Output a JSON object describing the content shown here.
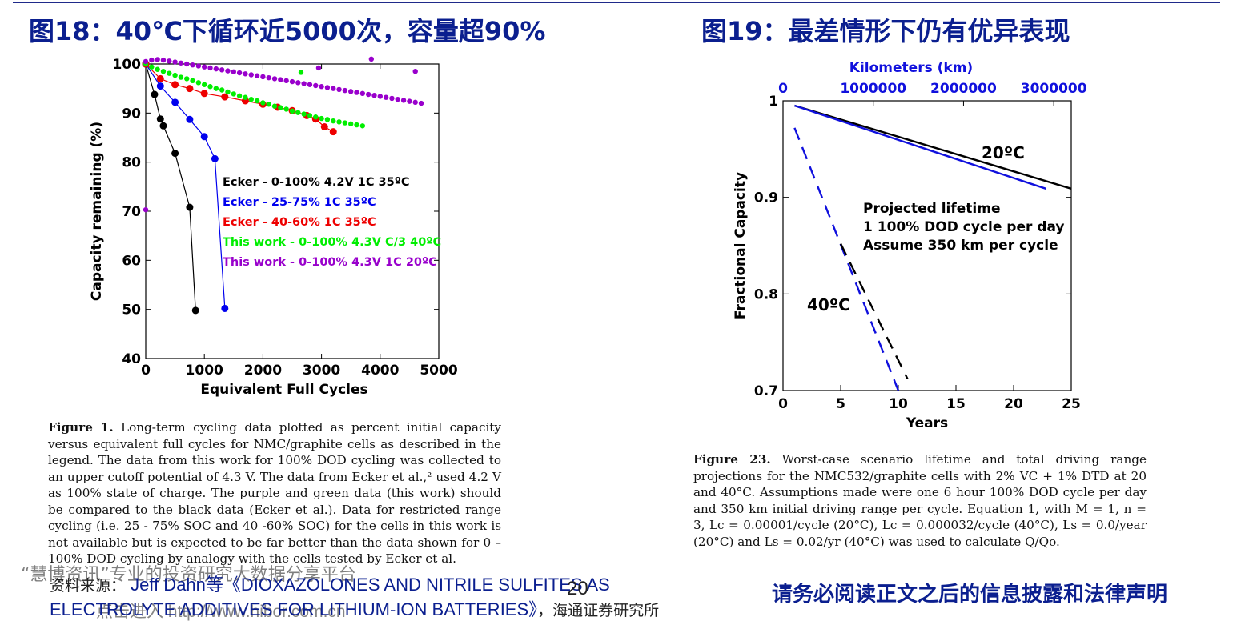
{
  "left_title": "图18：40℃下循环近5000次，容量超90%",
  "right_title": "图19：最差情形下仍有优异表现",
  "chart_data": [
    {
      "type": "scatter",
      "xlabel": "Equivalent Full Cycles",
      "ylabel": "Capacity remaining (%)",
      "xlim": [
        0,
        5000
      ],
      "ylim": [
        40,
        100
      ],
      "xticks": [
        "0",
        "1000",
        "2000",
        "3000",
        "4000",
        "5000"
      ],
      "yticks": [
        "40",
        "50",
        "60",
        "70",
        "80",
        "90",
        "100"
      ],
      "grid": false,
      "legend_position": "center",
      "series": [
        {
          "name": "Ecker - 0-100% 4.2V 1C 35ºC",
          "color": "#000000",
          "line": true,
          "x": [
            0,
            150,
            250,
            300,
            500,
            750,
            850
          ],
          "y": [
            100,
            93.8,
            88.8,
            87.4,
            81.8,
            70.8,
            49.8
          ]
        },
        {
          "name": "Ecker - 25-75% 1C 35ºC",
          "color": "#0000ee",
          "line": true,
          "x": [
            0,
            250,
            500,
            750,
            1000,
            1180,
            1350
          ],
          "y": [
            100,
            95.5,
            92.2,
            88.7,
            85.2,
            80.7,
            50.2
          ]
        },
        {
          "name": "Ecker - 40-60% 1C 35ºC",
          "color": "#ee0000",
          "line": true,
          "x": [
            0,
            250,
            500,
            750,
            1000,
            1350,
            1700,
            2000,
            2250,
            2500,
            2750,
            2900,
            3050,
            3200
          ],
          "y": [
            100,
            97.0,
            95.8,
            95.0,
            94.0,
            93.3,
            92.5,
            91.8,
            91.2,
            90.5,
            89.5,
            88.8,
            87.2,
            86.2
          ]
        },
        {
          "name": "This work - 0-100% 4.3V C/3 40ºC",
          "color": "#00ee00",
          "line": false,
          "x": [
            0,
            100,
            200,
            300,
            400,
            500,
            600,
            700,
            800,
            900,
            1000,
            1100,
            1200,
            1300,
            1400,
            1500,
            1600,
            1700,
            1800,
            1900,
            2000,
            2100,
            2200,
            2300,
            2400,
            2500,
            2600,
            2700,
            2800,
            2900,
            3000,
            3100,
            3200,
            3300,
            3400,
            3500,
            3600,
            3700,
            2650
          ],
          "y": [
            100,
            99.4,
            98.9,
            98.5,
            98.1,
            97.7,
            97.3,
            97.0,
            96.6,
            96.2,
            95.8,
            95.4,
            95.0,
            94.7,
            94.3,
            93.9,
            93.5,
            93.2,
            92.8,
            92.5,
            92.1,
            91.8,
            91.4,
            91.1,
            90.8,
            90.4,
            90.1,
            89.8,
            89.5,
            89.2,
            88.9,
            88.7,
            88.4,
            88.2,
            88.0,
            87.8,
            87.6,
            87.4,
            98.3
          ]
        },
        {
          "name": "This work - 0-100% 4.3V 1C 20ºC",
          "color": "#9900cc",
          "line": false,
          "x": [
            0,
            100,
            200,
            300,
            400,
            500,
            600,
            700,
            800,
            900,
            1000,
            1100,
            1200,
            1300,
            1400,
            1500,
            1600,
            1700,
            1800,
            1900,
            2000,
            2100,
            2200,
            2300,
            2400,
            2500,
            2600,
            2700,
            2800,
            2900,
            3000,
            3100,
            3200,
            3300,
            3400,
            3500,
            3600,
            3700,
            3800,
            3900,
            4000,
            4100,
            4200,
            4300,
            4400,
            4500,
            4600,
            4700,
            0,
            2950,
            3850,
            4600
          ],
          "y": [
            100.5,
            100.8,
            100.9,
            100.8,
            100.6,
            100.4,
            100.2,
            100.0,
            99.8,
            99.6,
            99.4,
            99.2,
            99.0,
            98.8,
            98.6,
            98.4,
            98.2,
            98.0,
            97.8,
            97.6,
            97.4,
            97.2,
            97.0,
            96.8,
            96.6,
            96.4,
            96.2,
            96.0,
            95.8,
            95.6,
            95.4,
            95.2,
            95.0,
            94.8,
            94.6,
            94.4,
            94.2,
            94.0,
            93.8,
            93.6,
            93.4,
            93.2,
            93.0,
            92.8,
            92.6,
            92.4,
            92.2,
            92.0,
            70.3,
            99.2,
            101.0,
            98.5
          ]
        }
      ]
    },
    {
      "type": "line",
      "xlabel": "Years",
      "ylabel": "Fractional Capacity",
      "x2label": "Kilometers (km)",
      "xlim": [
        0,
        25
      ],
      "ylim": [
        0.7,
        1.0
      ],
      "xticks": [
        "0",
        "5",
        "10",
        "15",
        "20",
        "25"
      ],
      "x2ticks": [
        "0",
        "1000000",
        "2000000",
        "3000000"
      ],
      "x2_values": [
        0,
        1000000,
        2000000,
        3000000
      ],
      "km_per_year": 127750,
      "yticks": [
        "0.7",
        "0.8",
        "0.9",
        "1"
      ],
      "grid": false,
      "annotations": {
        "label_20c": "20ºC",
        "label_40c": "40ºC",
        "projection_lines": [
          "Projected lifetime",
          "1 100% DOD cycle per day",
          "Assume 350 km per cycle"
        ]
      },
      "series": [
        {
          "color": "#000000",
          "dashed": false,
          "x": [
            1,
            25
          ],
          "y": [
            0.995,
            0.909
          ]
        },
        {
          "color": "#1010dd",
          "dashed": false,
          "x": [
            1,
            22.8
          ],
          "y": [
            0.995,
            0.909
          ]
        },
        {
          "color": "#1010dd",
          "dashed": true,
          "x": [
            1,
            10.0
          ],
          "y": [
            0.972,
            0.7
          ]
        },
        {
          "color": "#000000",
          "dashed": true,
          "x": [
            5,
            10.8
          ],
          "y": [
            0.852,
            0.712
          ]
        }
      ]
    }
  ],
  "captions": {
    "left_label": "Figure 1.",
    "left_text": " Long-term cycling data plotted as percent initial capacity versus equivalent full cycles for NMC/graphite cells as described in the legend. The data from this work for 100% DOD cycling was collected to an upper cutoff potential of 4.3 V. The data from Ecker et al.,² used 4.2 V as 100% state of charge. The purple and green data (this work) should be compared to the black data (Ecker et al.). Data for restricted range cycling (i.e. 25 - 75% SOC and 40 -60% SOC) for the cells in this work is not available but is expected to be far better than the data shown for 0 – 100% DOD cycling by analogy with the cells tested by Ecker et al.",
    "right_label": "Figure 23.",
    "right_text": " Worst-case scenario lifetime and total driving range projections for the NMC532/graphite cells with 2% VC + 1% DTD at 20 and 40°C. Assumptions made were one 6 hour 100% DOD cycle per day and 350 km initial driving range per cycle. Equation 1, with M = 1, n = 3, Lc = 0.00001/cycle (20°C), Lc = 0.000032/cycle (40°C), Ls = 0.0/year (20°C) and Ls = 0.02/yr (40°C) was used to calculate Q/Qo."
  },
  "footer": {
    "source_cn_prefix": "资料来源：",
    "source_text": " Jeff Dahn等《DIOXAZOLONES AND NITRILE SULFITES AS ELECTROLYTE ADDITIVES FOR LITHIUM-ION BATTERIES》",
    "source_cn_suffix": "，海通证券研究所",
    "watermark_brand": "慧博资讯",
    "watermark_text": "“慧博资讯”专业的投资研究大数据分享平台",
    "watermark_url": "点击进入 http://www.hibor.com.cn",
    "page_number": "20",
    "disclaimer": "请务必阅读正文之后的信息披露和法律声明"
  }
}
